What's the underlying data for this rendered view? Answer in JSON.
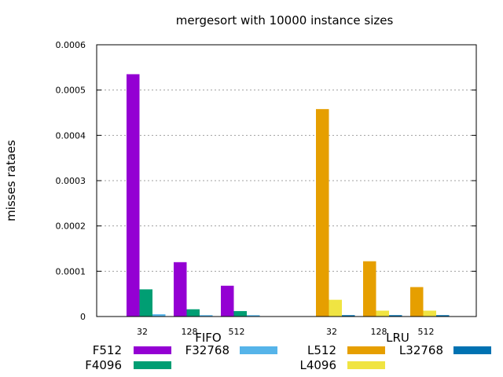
{
  "chart_data": {
    "type": "bar",
    "title": "mergesort with 10000 instance sizes",
    "ylabel": "misses rataes",
    "xlabel": "",
    "ylim": [
      0,
      0.0006
    ],
    "yticks": [
      "0",
      "0.0001",
      "0.0002",
      "0.0003",
      "0.0004",
      "0.0005",
      "0.0006"
    ],
    "grid": true,
    "groups": [
      {
        "name": "FIFO",
        "categories": [
          "32",
          "128",
          "512"
        ],
        "series": [
          {
            "name": "F512",
            "color": "#9400d3",
            "values": [
              0.000535,
              0.00012,
              6.8e-05
            ]
          },
          {
            "name": "F4096",
            "color": "#009e73",
            "values": [
              6e-05,
              1.6e-05,
              1.2e-05
            ]
          },
          {
            "name": "F32768",
            "color": "#56b4e9",
            "values": [
              5e-06,
              3e-06,
              3e-06
            ]
          }
        ]
      },
      {
        "name": "LRU",
        "categories": [
          "32",
          "128",
          "512"
        ],
        "series": [
          {
            "name": "L512",
            "color": "#e69f00",
            "values": [
              0.000458,
              0.000122,
              6.5e-05
            ]
          },
          {
            "name": "L4096",
            "color": "#f0e442",
            "values": [
              3.7e-05,
              1.3e-05,
              1.3e-05
            ]
          },
          {
            "name": "L32768",
            "color": "#0072b2",
            "values": [
              3e-06,
              3e-06,
              3e-06
            ]
          }
        ]
      }
    ]
  }
}
